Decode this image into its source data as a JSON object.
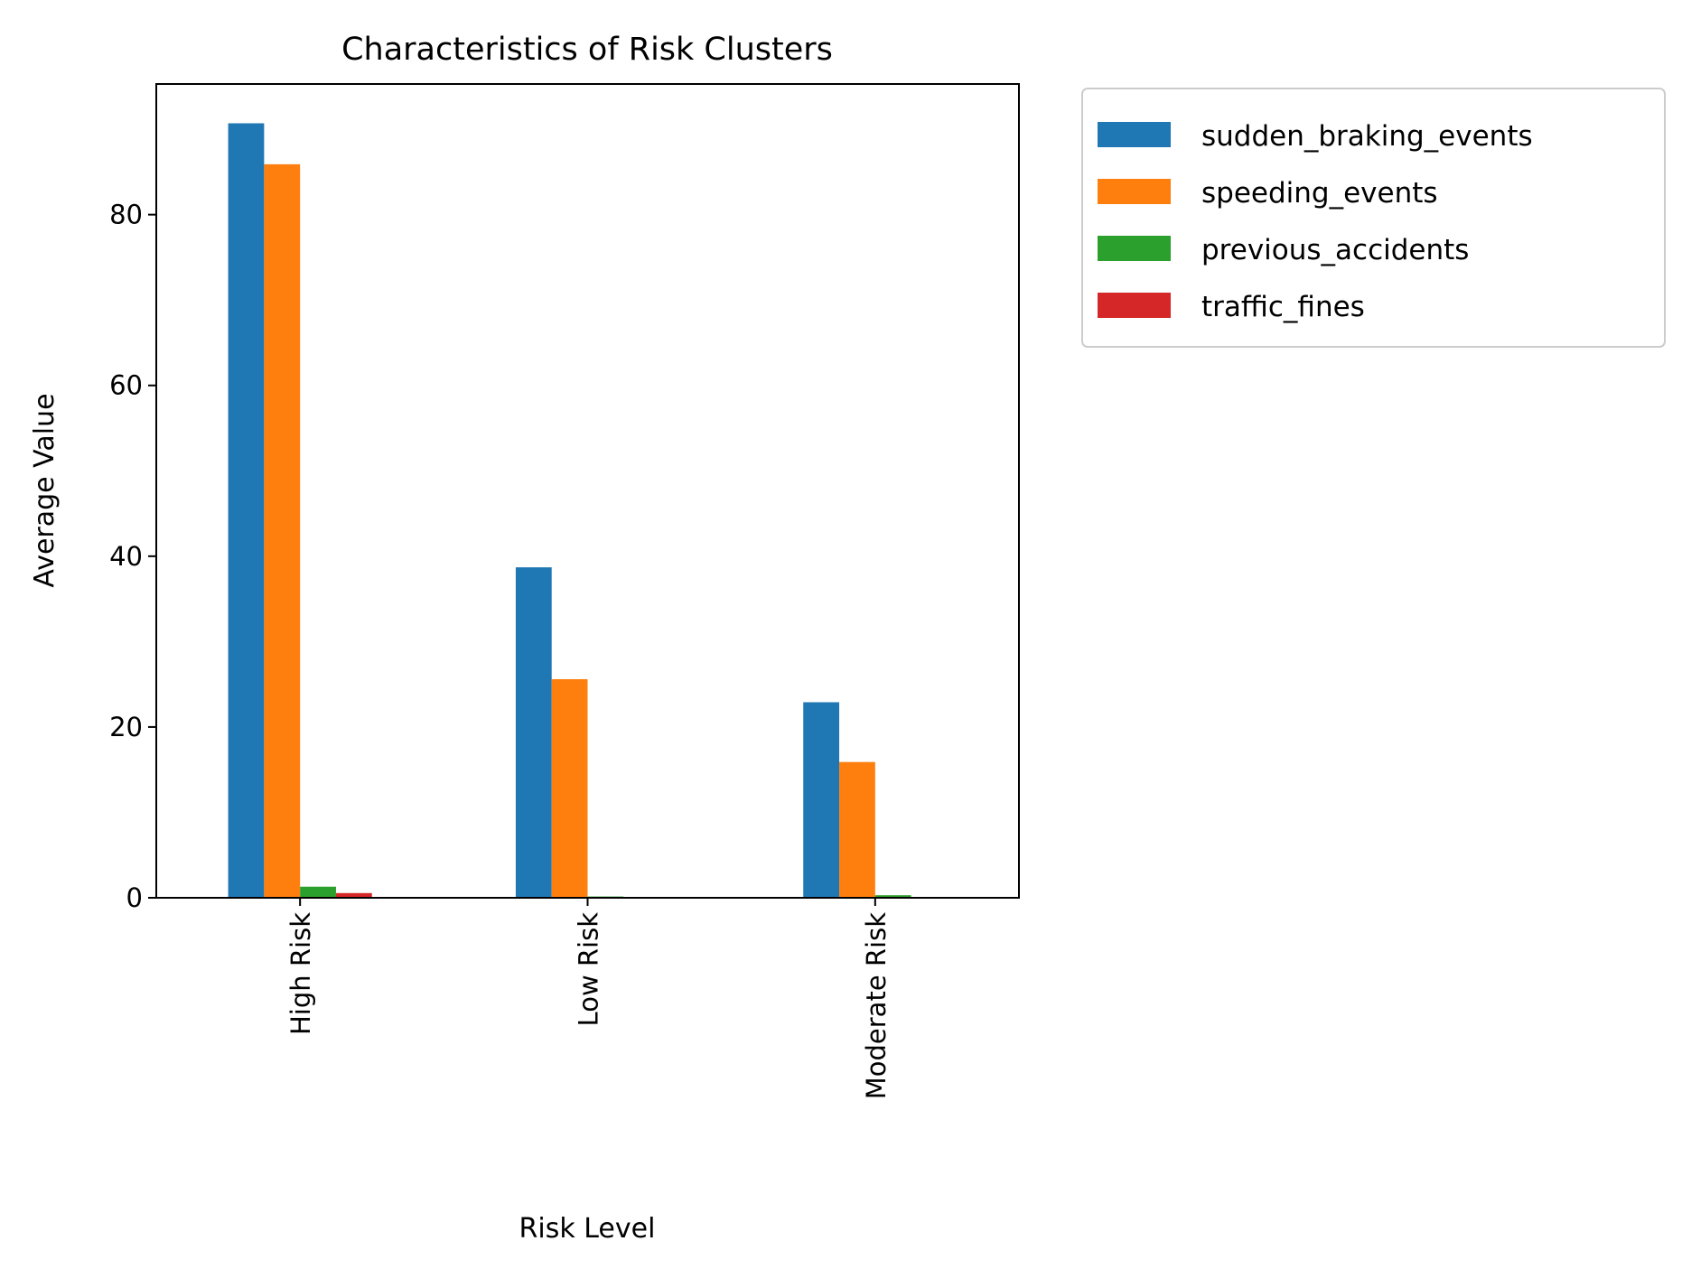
{
  "chart_data": {
    "type": "bar",
    "title": "Characteristics of Risk Clusters",
    "xlabel": "Risk Level",
    "ylabel": "Average Value",
    "categories": [
      "High Risk",
      "Low Risk",
      "Moderate Risk"
    ],
    "series": [
      {
        "name": "sudden_braking_events",
        "color": "#1f77b4",
        "values": [
          90.7,
          38.7,
          22.9
        ]
      },
      {
        "name": "speeding_events",
        "color": "#ff7f0e",
        "values": [
          85.9,
          25.6,
          15.9
        ]
      },
      {
        "name": "previous_accidents",
        "color": "#2ca02c",
        "values": [
          1.3,
          0.15,
          0.3
        ]
      },
      {
        "name": "traffic_fines",
        "color": "#d62728",
        "values": [
          0.55,
          0.03,
          0.05
        ]
      }
    ],
    "yticks": [
      0,
      20,
      40,
      60,
      80
    ],
    "ylim": [
      0,
      95.3
    ],
    "grid": false,
    "legend_position": "outside-right"
  }
}
